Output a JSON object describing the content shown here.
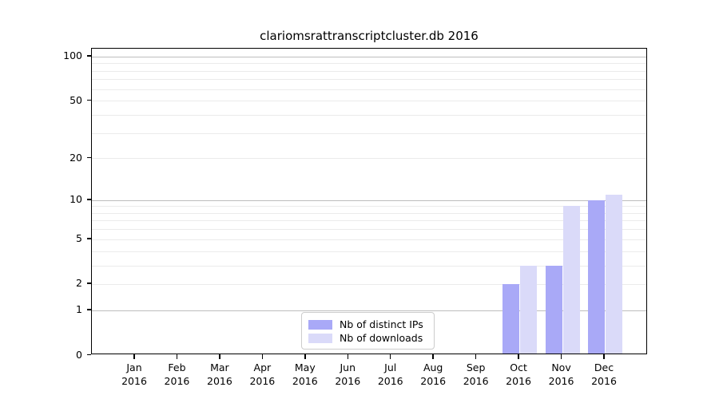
{
  "figure": {
    "title": "clariomsrattranscriptcluster.db 2016"
  },
  "chart_data": {
    "type": "bar",
    "title": "clariomsrattranscriptcluster.db 2016",
    "categories": [
      "Jan",
      "Feb",
      "Mar",
      "Apr",
      "May",
      "Jun",
      "Jul",
      "Aug",
      "Sep",
      "Oct",
      "Nov",
      "Dec"
    ],
    "x_tick_second_line": "2016",
    "series": [
      {
        "name": "Nb of distinct IPs",
        "color": "#a9a9f7",
        "values": [
          0,
          0,
          0,
          0,
          0,
          0,
          0,
          0,
          0,
          2,
          3,
          10
        ]
      },
      {
        "name": "Nb of downloads",
        "color": "#dadaf9",
        "values": [
          0,
          0,
          0,
          0,
          0,
          0,
          0,
          0,
          0,
          3,
          9,
          11
        ]
      }
    ],
    "yscale": "log1p",
    "ylim": [
      0,
      113
    ],
    "y_tick_values": [
      0,
      1,
      2,
      5,
      10,
      20,
      50,
      100
    ],
    "y_major_grid_values": [
      1,
      10,
      100
    ],
    "y_minor_grid_values": [
      2,
      3,
      4,
      5,
      6,
      7,
      8,
      9,
      20,
      30,
      40,
      50,
      60,
      70,
      80,
      90
    ],
    "grid": true,
    "legend_position": "lower center",
    "colors": {
      "major_grid": "#bdbdbd",
      "minor_grid": "#ebebeb",
      "axis": "#000000",
      "background": "#ffffff"
    }
  }
}
